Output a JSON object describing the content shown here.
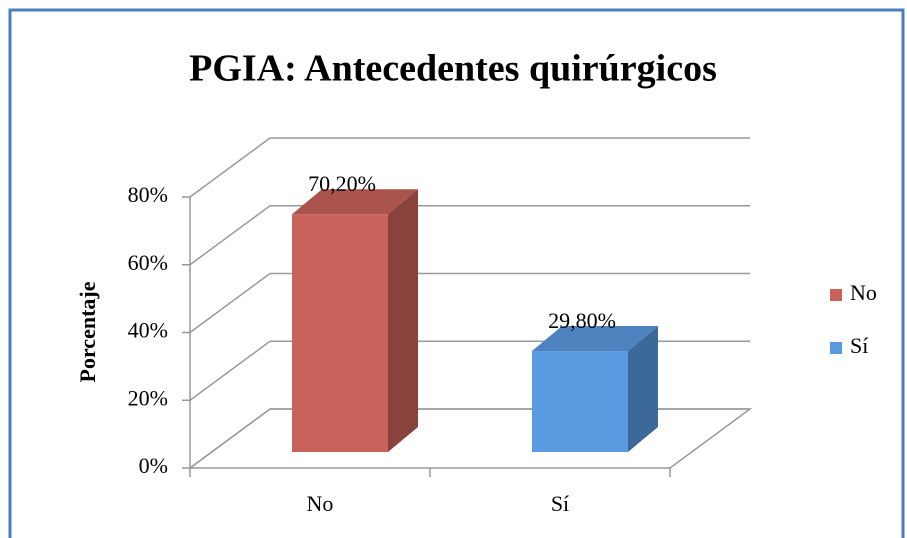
{
  "chart_data": {
    "type": "bar3d",
    "title": "PGIA: Antecedentes quirúrgicos",
    "y_label": "Porcentaje",
    "categories": [
      "No",
      "Sí"
    ],
    "series": [
      {
        "name": "No",
        "color": "#c9625a",
        "values": [
          70.2,
          null
        ],
        "value_labels": [
          "70,20%",
          null
        ]
      },
      {
        "name": "Sí",
        "color": "#5a9ae0",
        "values": [
          null,
          29.8
        ],
        "value_labels": [
          null,
          "29,80%"
        ]
      }
    ],
    "ylim": [
      0,
      80
    ],
    "yticks": [
      {
        "value": 0,
        "label": "0%"
      },
      {
        "value": 20,
        "label": "20%"
      },
      {
        "value": 40,
        "label": "40%"
      },
      {
        "value": 60,
        "label": "60%"
      },
      {
        "value": 80,
        "label": "80%"
      }
    ],
    "grid": true,
    "legend": "right"
  }
}
